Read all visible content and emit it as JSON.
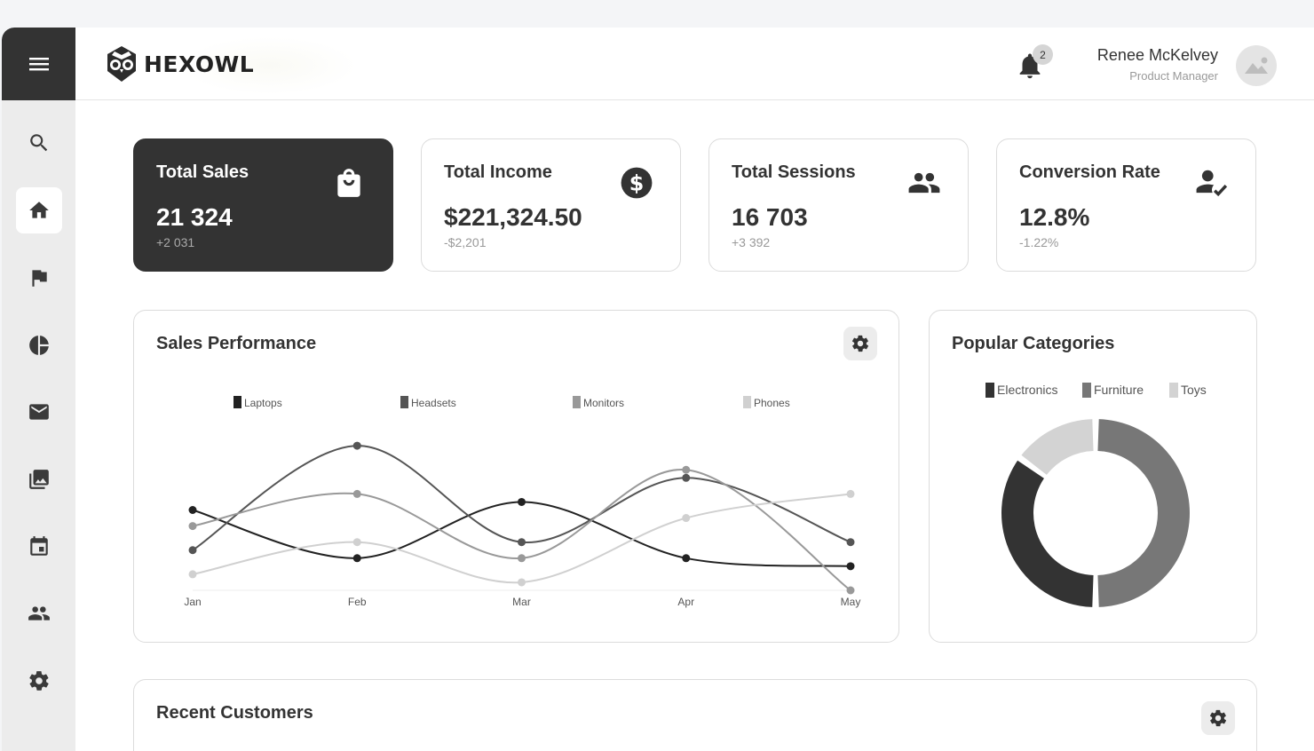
{
  "brand": {
    "name": "HEXOWL"
  },
  "header": {
    "notifications_count": "2",
    "user_name": "Renee McKelvey",
    "user_role": "Product Manager"
  },
  "sidebar": {
    "items": [
      {
        "icon": "search-icon"
      },
      {
        "icon": "home-icon",
        "active": true
      },
      {
        "icon": "flag-icon"
      },
      {
        "icon": "pie-chart-icon"
      },
      {
        "icon": "mail-icon"
      },
      {
        "icon": "gallery-icon"
      },
      {
        "icon": "calendar-icon"
      },
      {
        "icon": "users-icon"
      },
      {
        "icon": "settings-icon"
      }
    ]
  },
  "stats": [
    {
      "title": "Total Sales",
      "value": "21 324",
      "delta": "+2 031",
      "icon": "shopping-bag-icon"
    },
    {
      "title": "Total Income",
      "value": "$221,324.50",
      "delta": "-$2,201",
      "icon": "dollar-icon"
    },
    {
      "title": "Total Sessions",
      "value": "16 703",
      "delta": "+3 392",
      "icon": "users-icon"
    },
    {
      "title": "Conversion Rate",
      "value": "12.8%",
      "delta": "-1.22%",
      "icon": "user-check-icon"
    }
  ],
  "sales_panel": {
    "title": "Sales Performance"
  },
  "categories_panel": {
    "title": "Popular Categories"
  },
  "customers_panel": {
    "title": "Recent Customers"
  },
  "colors": {
    "dark": "#333333",
    "mid": "#6e6e6e",
    "light": "#9e9e9e",
    "lighter": "#d3d3d3"
  },
  "chart_data": [
    {
      "type": "line",
      "categories": [
        "Jan",
        "Feb",
        "Mar",
        "Apr",
        "May"
      ],
      "ylim": [
        0,
        100
      ],
      "grid": false,
      "legend_position": "top",
      "series": [
        {
          "name": "Laptops",
          "color": "#222222",
          "values": [
            50,
            20,
            55,
            20,
            15
          ]
        },
        {
          "name": "Headsets",
          "color": "#555555",
          "values": [
            25,
            90,
            30,
            70,
            30
          ]
        },
        {
          "name": "Monitors",
          "color": "#999999",
          "values": [
            40,
            60,
            20,
            75,
            0
          ]
        },
        {
          "name": "Phones",
          "color": "#d0d0d0",
          "values": [
            10,
            30,
            5,
            45,
            60
          ]
        }
      ]
    },
    {
      "type": "pie",
      "categories": [
        "Electronics",
        "Furniture",
        "Toys"
      ],
      "values": [
        35,
        50,
        15
      ],
      "colors": [
        "#333333",
        "#777777",
        "#d3d3d3"
      ],
      "legend_position": "top"
    }
  ]
}
